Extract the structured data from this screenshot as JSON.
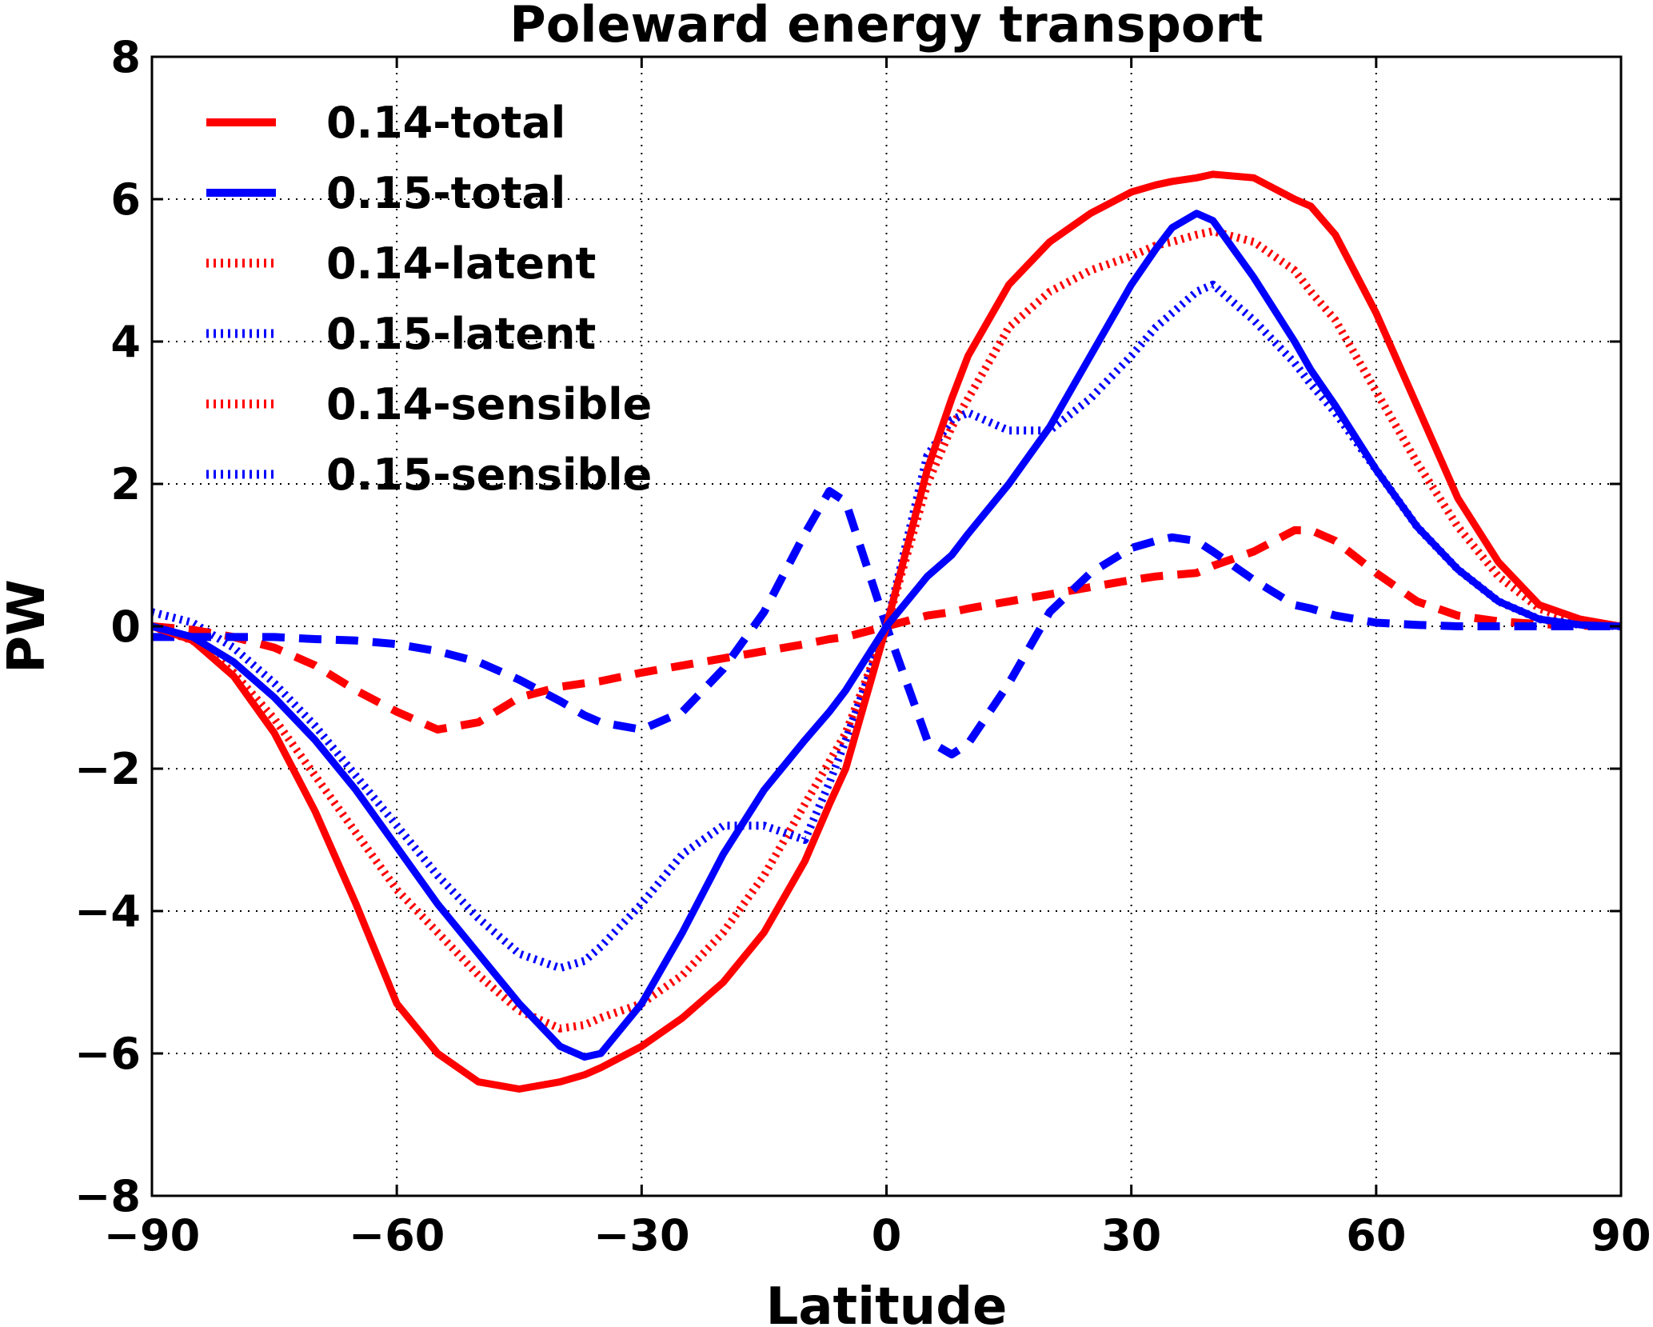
{
  "chart_data": {
    "type": "line",
    "title": "Poleward energy transport",
    "xlabel": "Latitude",
    "ylabel": "PW",
    "xlim": [
      -90,
      90
    ],
    "ylim": [
      -8,
      8
    ],
    "grid": true,
    "legend_position": "top-left",
    "xticks": [
      -90,
      -60,
      -30,
      0,
      30,
      60,
      90
    ],
    "xtick_labels": [
      "−90",
      "−60",
      "−30",
      "0",
      "30",
      "60",
      "90"
    ],
    "yticks": [
      -8,
      -6,
      -4,
      -2,
      0,
      2,
      4,
      6,
      8
    ],
    "ytick_labels": [
      "−8",
      "−6",
      "−4",
      "−2",
      "0",
      "2",
      "4",
      "6",
      "8"
    ],
    "x": [
      -90,
      -85,
      -80,
      -75,
      -70,
      -65,
      -60,
      -55,
      -50,
      -45,
      -40,
      -37,
      -35,
      -30,
      -25,
      -20,
      -15,
      -10,
      -7,
      -5,
      0,
      5,
      8,
      10,
      15,
      20,
      25,
      30,
      33,
      35,
      38,
      40,
      45,
      50,
      52,
      55,
      60,
      65,
      70,
      75,
      80,
      85,
      90
    ],
    "series": [
      {
        "name": "0.14-total",
        "color": "#ff0000",
        "style": "solid",
        "values": [
          0,
          -0.2,
          -0.7,
          -1.5,
          -2.6,
          -3.9,
          -5.3,
          -6.0,
          -6.4,
          -6.5,
          -6.4,
          -6.3,
          -6.2,
          -5.9,
          -5.5,
          -5.0,
          -4.3,
          -3.3,
          -2.5,
          -2.0,
          0,
          2.2,
          3.2,
          3.8,
          4.8,
          5.4,
          5.8,
          6.1,
          6.2,
          6.25,
          6.3,
          6.35,
          6.3,
          6.0,
          5.9,
          5.5,
          4.4,
          3.1,
          1.8,
          0.9,
          0.3,
          0.1,
          0
        ]
      },
      {
        "name": "0.15-total",
        "color": "#0000ff",
        "style": "solid",
        "values": [
          0,
          -0.15,
          -0.5,
          -1.0,
          -1.6,
          -2.3,
          -3.1,
          -3.9,
          -4.6,
          -5.3,
          -5.9,
          -6.05,
          -6.0,
          -5.3,
          -4.3,
          -3.2,
          -2.3,
          -1.6,
          -1.2,
          -0.9,
          0,
          0.7,
          1.0,
          1.3,
          2.0,
          2.8,
          3.8,
          4.8,
          5.3,
          5.6,
          5.8,
          5.7,
          4.9,
          4.0,
          3.6,
          3.1,
          2.2,
          1.4,
          0.8,
          0.35,
          0.1,
          0.02,
          0
        ]
      },
      {
        "name": "0.14-latent",
        "color": "#ff0000",
        "style": "dashed",
        "values": [
          0,
          -0.05,
          -0.15,
          -0.3,
          -0.55,
          -0.9,
          -1.2,
          -1.45,
          -1.35,
          -1.0,
          -0.85,
          -0.8,
          -0.77,
          -0.65,
          -0.55,
          -0.45,
          -0.35,
          -0.25,
          -0.18,
          -0.15,
          0,
          0.15,
          0.2,
          0.25,
          0.35,
          0.45,
          0.55,
          0.65,
          0.7,
          0.72,
          0.75,
          0.85,
          1.05,
          1.35,
          1.35,
          1.2,
          0.75,
          0.35,
          0.15,
          0.07,
          0.03,
          0.01,
          0
        ]
      },
      {
        "name": "0.15-latent",
        "color": "#0000ff",
        "style": "dashed",
        "values": [
          -0.15,
          -0.15,
          -0.15,
          -0.15,
          -0.18,
          -0.2,
          -0.25,
          -0.35,
          -0.5,
          -0.75,
          -1.05,
          -1.25,
          -1.35,
          -1.45,
          -1.2,
          -0.6,
          0.2,
          1.3,
          1.9,
          1.75,
          0,
          -1.6,
          -1.8,
          -1.65,
          -0.8,
          0.2,
          0.75,
          1.1,
          1.2,
          1.25,
          1.2,
          1.05,
          0.65,
          0.3,
          0.25,
          0.15,
          0.05,
          0.02,
          0,
          0,
          0,
          0,
          0
        ]
      },
      {
        "name": "0.14-sensible",
        "color": "#ff0000",
        "style": "dotted",
        "values": [
          0,
          -0.2,
          -0.65,
          -1.3,
          -2.1,
          -2.9,
          -3.7,
          -4.3,
          -4.9,
          -5.4,
          -5.65,
          -5.6,
          -5.5,
          -5.3,
          -4.9,
          -4.3,
          -3.5,
          -2.5,
          -1.9,
          -1.5,
          0,
          2.0,
          2.8,
          3.2,
          4.2,
          4.7,
          5.0,
          5.2,
          5.35,
          5.4,
          5.5,
          5.55,
          5.4,
          5.0,
          4.7,
          4.3,
          3.3,
          2.3,
          1.4,
          0.7,
          0.25,
          0.05,
          0
        ]
      },
      {
        "name": "0.15-sensible",
        "color": "#0000ff",
        "style": "dotted",
        "values": [
          0.2,
          0.05,
          -0.3,
          -0.8,
          -1.4,
          -2.1,
          -2.8,
          -3.5,
          -4.1,
          -4.6,
          -4.8,
          -4.7,
          -4.5,
          -3.9,
          -3.2,
          -2.8,
          -2.8,
          -3.0,
          -2.2,
          -1.6,
          0,
          2.4,
          2.9,
          3.0,
          2.75,
          2.75,
          3.2,
          3.8,
          4.2,
          4.4,
          4.7,
          4.8,
          4.3,
          3.7,
          3.4,
          3.0,
          2.2,
          1.4,
          0.8,
          0.35,
          0.1,
          0.02,
          0
        ]
      }
    ]
  }
}
